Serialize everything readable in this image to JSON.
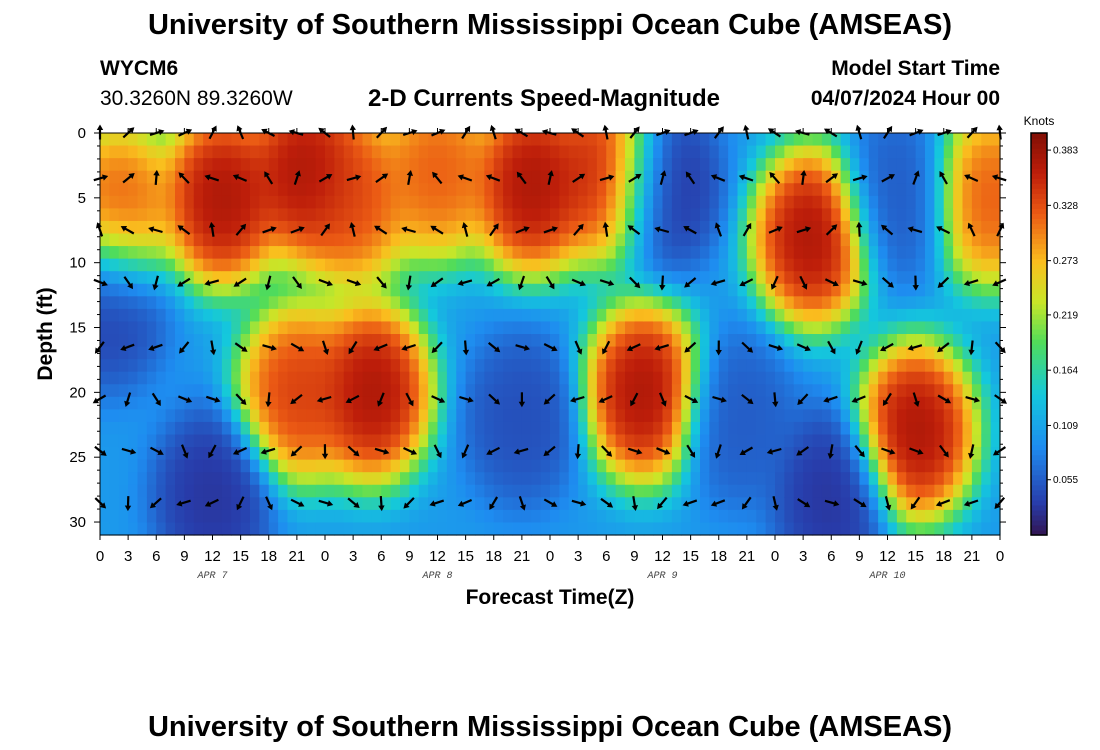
{
  "header": {
    "title": "University of Southern Mississippi Ocean Cube (AMSEAS)",
    "station_id": "WYCM6",
    "coords": "30.3260N  89.3260W",
    "subtitle": "2-D Currents Speed-Magnitude",
    "model_label": "Model Start Time",
    "model_time": "04/07/2024 Hour 00"
  },
  "footer": {
    "title": "University of Southern Mississippi Ocean Cube (AMSEAS)"
  },
  "chart_data": {
    "type": "heatmap",
    "title": "2-D Currents Speed-Magnitude",
    "xlabel": "Forecast Time(Z)",
    "ylabel": "Depth (ft)",
    "x_tick_labels": [
      "0",
      "3",
      "6",
      "9",
      "12",
      "15",
      "18",
      "21",
      "0",
      "3",
      "6",
      "9",
      "12",
      "15",
      "18",
      "21",
      "0",
      "3",
      "6",
      "9",
      "12",
      "15",
      "18",
      "21",
      "0",
      "3",
      "6",
      "9",
      "12",
      "15",
      "18",
      "21",
      "0"
    ],
    "x_hours_range": [
      0,
      96
    ],
    "day_labels": [
      {
        "label": "APR 7",
        "hour": 12
      },
      {
        "label": "APR 8",
        "hour": 36
      },
      {
        "label": "APR 9",
        "hour": 60
      },
      {
        "label": "APR 10",
        "hour": 84
      }
    ],
    "y_tick_labels": [
      "0",
      "5",
      "10",
      "15",
      "20",
      "25",
      "30"
    ],
    "y_ticks": [
      0,
      5,
      10,
      15,
      20,
      25,
      30
    ],
    "ylim": [
      0,
      31
    ],
    "colorbar": {
      "label": "Knots",
      "tick_labels": [
        "0.383",
        "0.328",
        "0.273",
        "0.219",
        "0.164",
        "0.109",
        "0.055"
      ],
      "ticks": [
        0.383,
        0.328,
        0.273,
        0.219,
        0.164,
        0.109,
        0.055
      ],
      "range": [
        0,
        0.4
      ]
    },
    "vector_depths": [
      0,
      3.5,
      7.5,
      11.5,
      16.5,
      20.5,
      24.5,
      28.5
    ],
    "vector_hours": [
      0,
      3,
      6,
      9,
      12,
      15,
      18,
      21,
      24,
      27,
      30,
      33,
      36,
      39,
      42,
      45,
      48,
      51,
      54,
      57,
      60,
      63,
      66,
      69,
      72,
      75,
      78,
      81,
      84,
      87,
      90,
      93,
      96
    ],
    "speed_blobs": [
      {
        "h": 2,
        "d": 6,
        "v": 0.34
      },
      {
        "h": 13,
        "d": 5,
        "v": 0.4
      },
      {
        "h": 22,
        "d": 3,
        "v": 0.4
      },
      {
        "h": 27,
        "d": 5,
        "v": 0.35
      },
      {
        "h": 36,
        "d": 3,
        "v": 0.34
      },
      {
        "h": 46,
        "d": 4,
        "v": 0.4
      },
      {
        "h": 54,
        "d": 3,
        "v": 0.38
      },
      {
        "h": 60,
        "d": 4,
        "v": 0.02
      },
      {
        "h": 58,
        "d": 20,
        "v": 0.4
      },
      {
        "h": 29,
        "d": 20,
        "v": 0.4
      },
      {
        "h": 21,
        "d": 20,
        "v": 0.36
      },
      {
        "h": 1,
        "d": 13,
        "v": 0.03
      },
      {
        "h": 12,
        "d": 28,
        "v": 0.02
      },
      {
        "h": 76,
        "d": 8,
        "v": 0.4
      },
      {
        "h": 85,
        "d": 5,
        "v": 0.05
      },
      {
        "h": 87,
        "d": 23,
        "v": 0.4
      },
      {
        "h": 95,
        "d": 5,
        "v": 0.34
      },
      {
        "h": 78,
        "d": 28,
        "v": 0.02
      },
      {
        "h": 45,
        "d": 22,
        "v": 0.04
      },
      {
        "h": 68,
        "d": 22,
        "v": 0.05
      }
    ]
  }
}
